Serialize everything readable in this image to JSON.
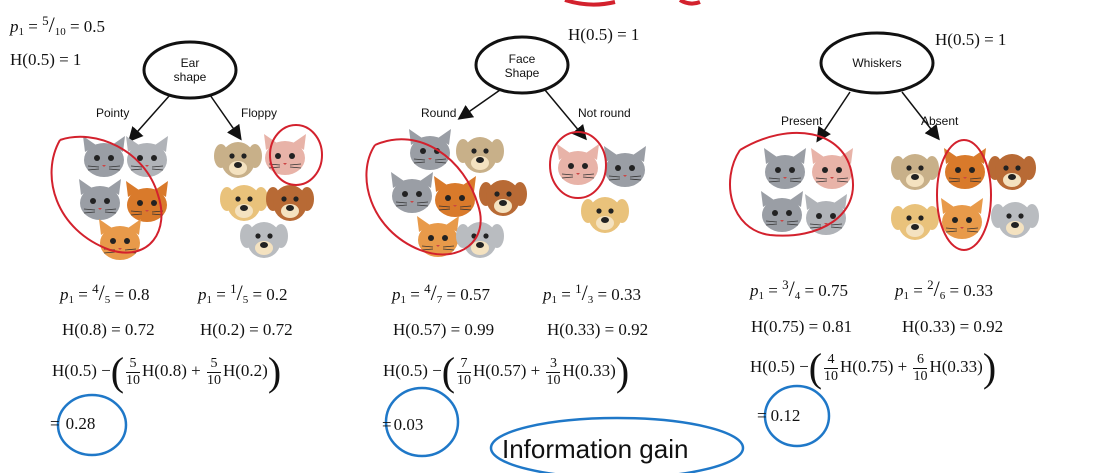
{
  "header": {
    "p1_root": "p",
    "p1_root_sub": "1",
    "p1_root_num": "5",
    "p1_root_den": "10",
    "p1_root_val": "= 0.5",
    "h_root": "H(0.5) = 1"
  },
  "features": [
    {
      "name_line1": "Ear",
      "name_line2": "shape",
      "h_root": "H(0.5) = 1",
      "left_branch": "Pointy",
      "right_branch": "Floppy",
      "p_left_num": "4",
      "p_left_den": "5",
      "p_left_val": "= 0.8",
      "p_right_num": "1",
      "p_right_den": "5",
      "p_right_val": "= 0.2",
      "h_left": "H(0.8) = 0.72",
      "h_right": "H(0.2) = 0.72",
      "w_left_num": "5",
      "w_left_den": "10",
      "h_left_term": "H(0.8) +",
      "w_right_num": "5",
      "w_right_den": "10",
      "h_right_term": "H(0.2)",
      "gain": "0.28"
    },
    {
      "name_line1": "Face",
      "name_line2": "Shape",
      "h_root": "H(0.5) = 1",
      "left_branch": "Round",
      "right_branch": "Not round",
      "p_left_num": "4",
      "p_left_den": "7",
      "p_left_val": "= 0.57",
      "p_right_num": "1",
      "p_right_den": "3",
      "p_right_val": "= 0.33",
      "h_left": "H(0.57) = 0.99",
      "h_right": "H(0.33) = 0.92",
      "w_left_num": "7",
      "w_left_den": "10",
      "h_left_term": "H(0.57) +",
      "w_right_num": "3",
      "w_right_den": "10",
      "h_right_term": "H(0.33)",
      "gain": "0.03"
    },
    {
      "name_line1": "Whiskers",
      "name_line2": "",
      "h_root": "H(0.5) = 1",
      "left_branch": "Present",
      "right_branch": "Absent",
      "p_left_num": "3",
      "p_left_den": "4",
      "p_left_val": "= 0.75",
      "p_right_num": "2",
      "p_right_den": "6",
      "p_right_val": "= 0.33",
      "h_left": "H(0.75) = 0.81",
      "h_right": "H(0.33) = 0.92",
      "w_left_num": "4",
      "w_left_den": "10",
      "h_left_term": "H(0.75) +",
      "w_right_num": "6",
      "w_right_den": "10",
      "h_right_term": "H(0.33)",
      "gain": "0.12"
    }
  ],
  "formula_prefix": "H(0.5) −",
  "p_symbol": "p",
  "p_sub": "1",
  "p_eq": "=",
  "equals_sign": "=",
  "footer_label": "Information gain",
  "colors": {
    "red_ink": "#d3212d",
    "blue_ink": "#1f78c8",
    "cat_gray": "#9a9ea5",
    "cat_orange": "#d97a2b",
    "dog_tan": "#e9c27b",
    "dog_brown": "#b86a35",
    "dog_gray": "#b9bcc0"
  },
  "icons": [
    "cat-icon",
    "dog-icon"
  ]
}
